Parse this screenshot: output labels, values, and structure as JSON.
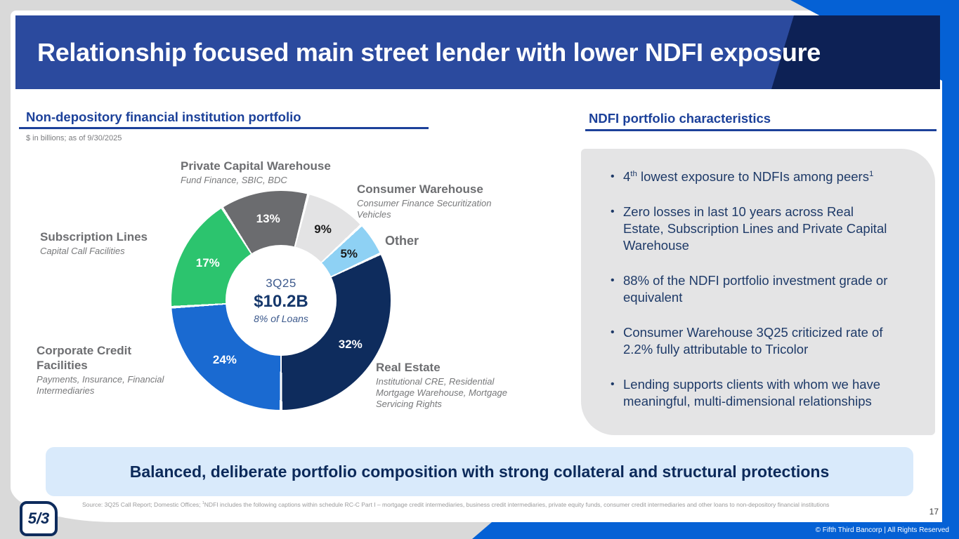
{
  "page": {
    "title": "Relationship focused main street lender with lower NDFI exposure",
    "page_number": "17",
    "copyright": "© Fifth Third Bancorp | All Rights Reserved",
    "logo_text": "5/3",
    "banner_text": "Balanced, deliberate portfolio composition with strong collateral and structural protections",
    "source_note": "Source: 3Q25 Call Report; Domestic Offices; ^{1}NDFI includes the following captions within schedule RC-C Part I – mortgage credit intermediaries, business credit intermediaries, private equity funds, consumer credit intermediaries and other loans to non-depository financial institutions"
  },
  "left_panel": {
    "heading": "Non-depository financial institution portfolio",
    "note": "$ in billions; as of 9/30/2025"
  },
  "right_panel": {
    "heading": "NDFI portfolio characteristics",
    "bullets": [
      "4^{th} lowest exposure to NDFIs among peers^{1}",
      "Zero losses in last 10 years across Real Estate, Subscription Lines and Private Capital Warehouse",
      "88% of the NDFI portfolio investment grade or equivalent",
      "Consumer Warehouse 3Q25 criticized rate of 2.2% fully attributable to Tricolor",
      "Lending supports clients with whom we have meaningful, multi-dimensional relationships"
    ]
  },
  "chart_data": {
    "type": "pie",
    "subtype": "donut",
    "title": "Non-depository financial institution portfolio",
    "units_note": "$ in billions; as of 9/30/2025",
    "start_angle_deg": -32.4,
    "center": {
      "period": "3Q25",
      "total": "$10.2B",
      "note": "8% of Loans"
    },
    "segments": [
      {
        "label": "Private Capital Warehouse",
        "sublabel": "Fund Finance, SBIC, BDC",
        "value": 13,
        "color": "#6b6c6f",
        "value_label_color": "#ffffff"
      },
      {
        "label": "Consumer Warehouse",
        "sublabel": "Consumer Finance Securitization Vehicles",
        "value": 9,
        "color": "#e3e3e4",
        "value_label_color": "#1a1a1a"
      },
      {
        "label": "Other",
        "sublabel": "",
        "value": 5,
        "color": "#8ed1f4",
        "value_label_color": "#1a1a1a"
      },
      {
        "label": "Real Estate",
        "sublabel": "Institutional CRE, Residential Mortgage Warehouse, Mortgage Servicing Rights",
        "value": 32,
        "color": "#0e2c5d",
        "value_label_color": "#ffffff"
      },
      {
        "label": "Corporate Credit Facilities",
        "sublabel": "Payments, Insurance, Financial Intermediaries",
        "value": 24,
        "color": "#1a6ad1",
        "value_label_color": "#ffffff"
      },
      {
        "label": "Subscription Lines",
        "sublabel": "Capital Call Facilities",
        "value": 17,
        "color": "#2cc46e",
        "value_label_color": "#ffffff"
      }
    ]
  },
  "theme": {
    "header_blue": "#2b4a9e",
    "header_navy": "#0d2155",
    "accent_blue": "#0561d5",
    "light_banner_blue": "#d9eafb",
    "panel_gray": "#e4e4e5",
    "heading_blue": "#1c419a",
    "body_text_navy": "#1e3a68",
    "page_background_gray": "#d9d9d9"
  }
}
